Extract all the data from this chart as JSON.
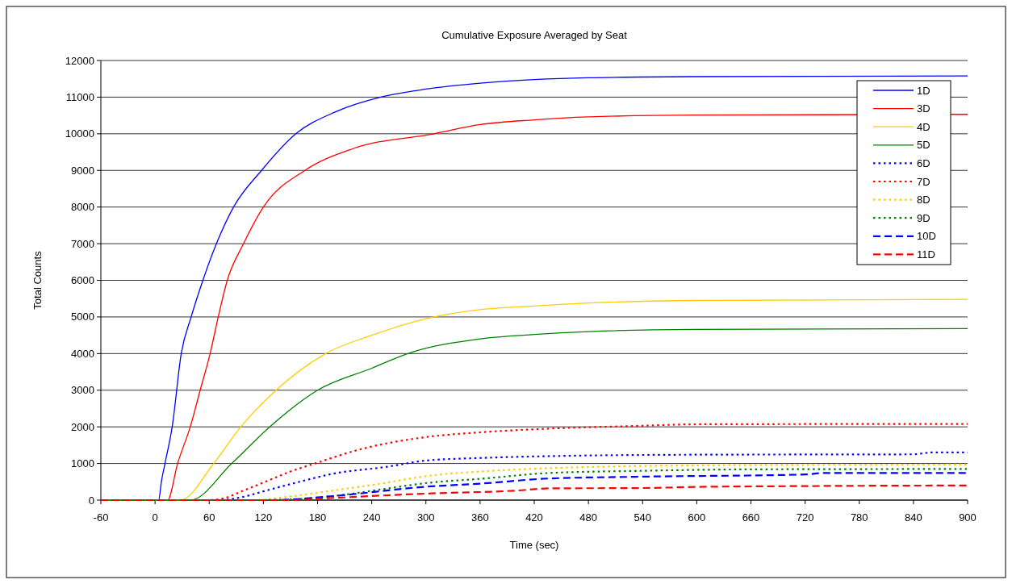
{
  "chart_data": {
    "type": "line",
    "title": "Cumulative Exposure Averaged by Seat",
    "xlabel": "Time (sec)",
    "ylabel": "Total Counts",
    "xlim": [
      -60,
      900
    ],
    "xticks": [
      -60,
      0,
      60,
      120,
      180,
      240,
      300,
      360,
      420,
      480,
      540,
      600,
      660,
      720,
      780,
      840,
      900
    ],
    "ylim": [
      0,
      12000
    ],
    "yticks": [
      0,
      1000,
      2000,
      3000,
      4000,
      5000,
      6000,
      7000,
      8000,
      9000,
      10000,
      11000,
      12000
    ],
    "grid": "y",
    "legend": "top right",
    "marker": "none",
    "series": [
      {
        "name": "1D",
        "color": "#0000ff",
        "line_style": "solid",
        "x": [
          -60,
          4,
          7,
          11,
          19,
          29,
          40,
          53,
          68,
          87,
          118,
          156,
          200,
          250,
          300,
          360,
          420,
          480,
          600,
          900
        ],
        "values": [
          0,
          0,
          500,
          1000,
          2000,
          4000,
          5000,
          6000,
          7000,
          8000,
          9000,
          10000,
          10600,
          11000,
          11220,
          11380,
          11480,
          11530,
          11560,
          11580
        ]
      },
      {
        "name": "3D",
        "color": "#ff0000",
        "line_style": "solid",
        "x": [
          -60,
          14,
          25,
          39,
          50,
          61,
          70,
          80,
          98,
          120,
          166,
          220,
          309,
          360,
          420,
          480,
          600,
          900
        ],
        "values": [
          0,
          0,
          1000,
          2000,
          3000,
          4000,
          5000,
          6000,
          7000,
          8000,
          9000,
          9600,
          10000,
          10250,
          10380,
          10460,
          10510,
          10530
        ]
      },
      {
        "name": "4D",
        "color": "#ffcc00",
        "line_style": "solid",
        "x": [
          -60,
          28,
          65,
          95,
          134,
          189,
          240,
          309,
          360,
          420,
          480,
          600,
          900
        ],
        "values": [
          0,
          0,
          1000,
          2000,
          3000,
          4000,
          4500,
          5000,
          5200,
          5300,
          5380,
          5450,
          5480
        ]
      },
      {
        "name": "5D",
        "color": "#008000",
        "line_style": "solid",
        "x": [
          -60,
          39,
          85,
          127,
          180,
          240,
          280,
          360,
          420,
          480,
          600,
          900
        ],
        "values": [
          0,
          0,
          1000,
          2000,
          3000,
          3600,
          4000,
          4400,
          4520,
          4600,
          4660,
          4680
        ]
      },
      {
        "name": "6D",
        "color": "#0000ff",
        "line_style": "dotted",
        "x": [
          -60,
          70,
          96,
          123,
          160,
          197,
          257,
          300,
          360,
          436,
          600,
          840,
          860,
          900
        ],
        "values": [
          0,
          0,
          80,
          260,
          500,
          720,
          910,
          1080,
          1150,
          1200,
          1240,
          1250,
          1300,
          1300
        ]
      },
      {
        "name": "7D",
        "color": "#ff0000",
        "line_style": "dotted",
        "x": [
          -60,
          60,
          76,
          96,
          123,
          150,
          177,
          228,
          300,
          360,
          436,
          540,
          600,
          900
        ],
        "values": [
          0,
          0,
          50,
          240,
          510,
          780,
          1000,
          1390,
          1720,
          1850,
          1950,
          2030,
          2070,
          2080
        ]
      },
      {
        "name": "8D",
        "color": "#ffcc00",
        "line_style": "dotted",
        "x": [
          -60,
          110,
          150,
          197,
          250,
          302,
          360,
          436,
          540,
          700,
          900
        ],
        "values": [
          0,
          0,
          100,
          260,
          450,
          660,
          780,
          870,
          930,
          960,
          970
        ]
      },
      {
        "name": "9D",
        "color": "#008000",
        "line_style": "dotted",
        "x": [
          -60,
          120,
          197,
          250,
          302,
          360,
          436,
          540,
          660,
          900
        ],
        "values": [
          0,
          0,
          110,
          290,
          470,
          580,
          740,
          800,
          840,
          850
        ]
      },
      {
        "name": "10D",
        "color": "#0000ff",
        "line_style": "dashed",
        "x": [
          -60,
          130,
          197,
          302,
          360,
          436,
          540,
          720,
          740,
          900
        ],
        "values": [
          0,
          0,
          110,
          370,
          450,
          590,
          640,
          700,
          740,
          740
        ]
      },
      {
        "name": "11D",
        "color": "#ff0000",
        "line_style": "dashed",
        "x": [
          -60,
          150,
          197,
          302,
          400,
          436,
          540,
          600,
          700,
          900
        ],
        "values": [
          0,
          0,
          60,
          180,
          260,
          320,
          330,
          360,
          380,
          400
        ]
      }
    ]
  }
}
